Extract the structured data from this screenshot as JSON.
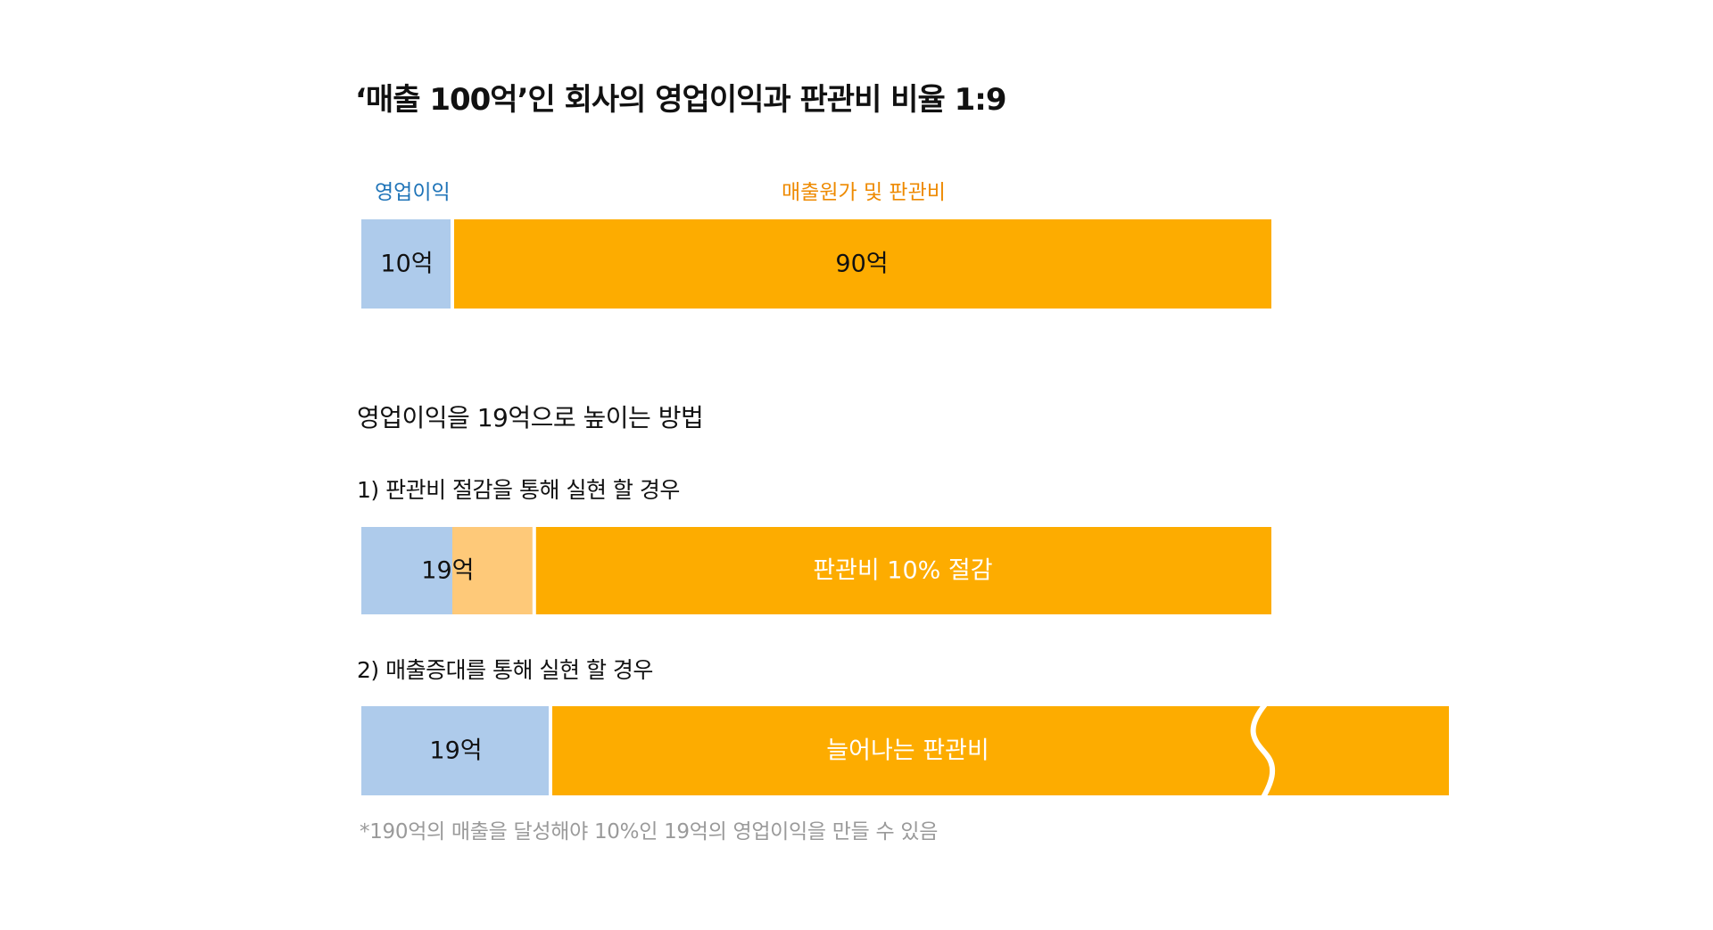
{
  "title": "‘매출 100억’인 회사의 영업이익과 판관비 비율 1:9",
  "method_title": "영업이익을 19억으로 높이는 방법",
  "footnote": "*190억의 매출을 달성해야 10%인 19억의 영업이익을 만들 수 있음",
  "colors": {
    "operating_profit": "#aecbeb",
    "cost": "#fdac00",
    "saved_cost": "#fec979",
    "label_blue": "#1f74b8",
    "label_orange": "#ee8a00",
    "footnote_gray": "#9a9a9a"
  },
  "chart_data": [
    {
      "type": "bar",
      "orientation": "horizontal-stacked",
      "title": "‘매출 100억’인 회사의 영업이익과 판관비 비율 1:9",
      "legend": [
        "영업이익",
        "매출원가 및 판관비"
      ],
      "segments": [
        {
          "name": "영업이익",
          "value": 10,
          "label": "10억"
        },
        {
          "name": "매출원가 및 판관비",
          "value": 90,
          "label": "90억"
        }
      ]
    },
    {
      "type": "bar",
      "orientation": "horizontal-stacked",
      "title": "1) 판관비 절감을 통해 실현 할 경우",
      "segments": [
        {
          "value": 10,
          "label": "19억"
        },
        {
          "value": 9,
          "label": ""
        },
        {
          "value": 81,
          "label": "판관비 10% 절감"
        }
      ]
    },
    {
      "type": "bar",
      "orientation": "horizontal-stacked",
      "title": "2) 매출증대를 통해 실현 할 경우",
      "segments": [
        {
          "value": 19,
          "label": "19억"
        },
        {
          "value": 171,
          "label": "늘어나는 판관비",
          "axis_break": true
        }
      ]
    }
  ]
}
